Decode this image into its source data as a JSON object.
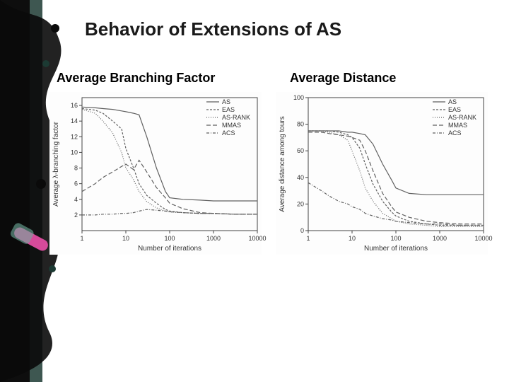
{
  "title": "Behavior of Extensions of AS",
  "title_fontsize": 26,
  "subtitle_left": "Average Branching Factor",
  "subtitle_right": "Average Distance",
  "subtitle_fontsize": 18,
  "legend": {
    "labels": [
      "AS",
      "EAS",
      "AS-RANK",
      "MMAS",
      "ACS"
    ],
    "font_size": 10,
    "colors": [
      "#606060",
      "#606060",
      "#606060",
      "#606060",
      "#606060"
    ],
    "dashes": [
      "",
      "3,2",
      "1,2",
      "6,3",
      "4,2,1,2"
    ]
  },
  "colors": {
    "background": "#ffffff",
    "axis": "#444444",
    "grid": "#e0e0e0",
    "series": "#606060",
    "text": "#333333"
  },
  "chart_left": {
    "type": "line",
    "x_scale": "log",
    "xlim": [
      1,
      10000
    ],
    "ylim": [
      0,
      17
    ],
    "xticks": [
      1,
      10,
      100,
      1000,
      10000
    ],
    "yticks": [
      2,
      4,
      6,
      8,
      10,
      12,
      14,
      16
    ],
    "xlabel": "Number of iterations",
    "ylabel": "Average λ-branching factor",
    "label_fontsize": 10,
    "tick_fontsize": 9,
    "line_width": 1.2,
    "series": {
      "AS": {
        "x": [
          1,
          2,
          3,
          5,
          8,
          10,
          15,
          20,
          30,
          50,
          80,
          100,
          200,
          500,
          1000,
          3000,
          10000
        ],
        "y": [
          15.8,
          15.7,
          15.6,
          15.5,
          15.3,
          15.2,
          15.0,
          14.8,
          12.0,
          8.0,
          5.0,
          4.2,
          4.0,
          3.9,
          3.8,
          3.8,
          3.8
        ]
      },
      "EAS": {
        "x": [
          1,
          2,
          3,
          5,
          8,
          10,
          15,
          20,
          30,
          50,
          80,
          100,
          200,
          500,
          1000,
          3000,
          10000
        ],
        "y": [
          15.6,
          15.4,
          15.0,
          14.0,
          13.0,
          10.5,
          8.0,
          6.0,
          4.5,
          3.5,
          2.7,
          2.5,
          2.3,
          2.2,
          2.2,
          2.1,
          2.1
        ]
      },
      "AS-RANK": {
        "x": [
          1,
          2,
          3,
          5,
          8,
          10,
          15,
          20,
          30,
          50,
          80,
          100,
          200,
          500,
          1000,
          3000,
          10000
        ],
        "y": [
          15.5,
          15.0,
          14.0,
          12.5,
          10.0,
          8.0,
          6.5,
          5.0,
          3.7,
          2.9,
          2.5,
          2.4,
          2.3,
          2.2,
          2.2,
          2.1,
          2.1
        ]
      },
      "MMAS": {
        "x": [
          1,
          2,
          3,
          5,
          8,
          10,
          15,
          20,
          30,
          50,
          80,
          100,
          200,
          500,
          1000,
          3000,
          10000
        ],
        "y": [
          5.0,
          6.0,
          6.8,
          7.5,
          8.2,
          8.5,
          7.8,
          9.0,
          7.5,
          5.5,
          4.2,
          3.5,
          2.8,
          2.3,
          2.2,
          2.1,
          2.1
        ]
      },
      "ACS": {
        "x": [
          1,
          2,
          3,
          5,
          8,
          10,
          15,
          20,
          30,
          50,
          80,
          100,
          200,
          500,
          1000,
          3000,
          10000
        ],
        "y": [
          2.0,
          2.0,
          2.1,
          2.1,
          2.2,
          2.2,
          2.3,
          2.5,
          2.7,
          2.6,
          2.5,
          2.4,
          2.3,
          2.2,
          2.2,
          2.1,
          2.1
        ]
      }
    }
  },
  "chart_right": {
    "type": "line",
    "x_scale": "log",
    "xlim": [
      1,
      10000
    ],
    "ylim": [
      0,
      100
    ],
    "xticks": [
      1,
      10,
      100,
      1000,
      10000
    ],
    "yticks": [
      0,
      20,
      40,
      60,
      80,
      100
    ],
    "xlabel": "Number of iterations",
    "ylabel": "Average distance among tours",
    "label_fontsize": 10,
    "tick_fontsize": 9,
    "line_width": 1.2,
    "series": {
      "AS": {
        "x": [
          1,
          2,
          3,
          5,
          8,
          10,
          15,
          20,
          30,
          50,
          80,
          100,
          200,
          500,
          1000,
          3000,
          10000
        ],
        "y": [
          75,
          75,
          75,
          75,
          74,
          74,
          73,
          72,
          65,
          50,
          38,
          32,
          28,
          27,
          27,
          27,
          27
        ]
      },
      "EAS": {
        "x": [
          1,
          2,
          3,
          5,
          8,
          10,
          15,
          20,
          30,
          50,
          80,
          100,
          200,
          500,
          1000,
          3000,
          10000
        ],
        "y": [
          75,
          75,
          75,
          74,
          72,
          70,
          62,
          50,
          35,
          22,
          14,
          11,
          7,
          5,
          4,
          4,
          4
        ]
      },
      "AS-RANK": {
        "x": [
          1,
          2,
          3,
          5,
          8,
          10,
          15,
          20,
          30,
          50,
          80,
          100,
          200,
          500,
          1000,
          3000,
          10000
        ],
        "y": [
          75,
          75,
          74,
          72,
          68,
          60,
          45,
          32,
          22,
          13,
          9,
          7,
          5,
          4,
          3,
          3,
          3
        ]
      },
      "MMAS": {
        "x": [
          1,
          2,
          3,
          5,
          8,
          10,
          15,
          20,
          30,
          50,
          80,
          100,
          200,
          500,
          1000,
          3000,
          10000
        ],
        "y": [
          74,
          74,
          73,
          72,
          71,
          70,
          68,
          60,
          45,
          28,
          18,
          14,
          10,
          7,
          6,
          5,
          5
        ]
      },
      "ACS": {
        "x": [
          1,
          2,
          3,
          5,
          8,
          10,
          15,
          20,
          30,
          50,
          80,
          100,
          200,
          500,
          1000,
          3000,
          10000
        ],
        "y": [
          36,
          30,
          26,
          22,
          20,
          18,
          16,
          13,
          11,
          9,
          8,
          7,
          6,
          5,
          5,
          4,
          4
        ]
      }
    }
  },
  "decoration": {
    "splatter_color_dark": "#0a0a0a",
    "splatter_color_mid": "#2b4d45",
    "accent_pink": "#d64a9a",
    "accent_green": "#3a7d6f"
  }
}
